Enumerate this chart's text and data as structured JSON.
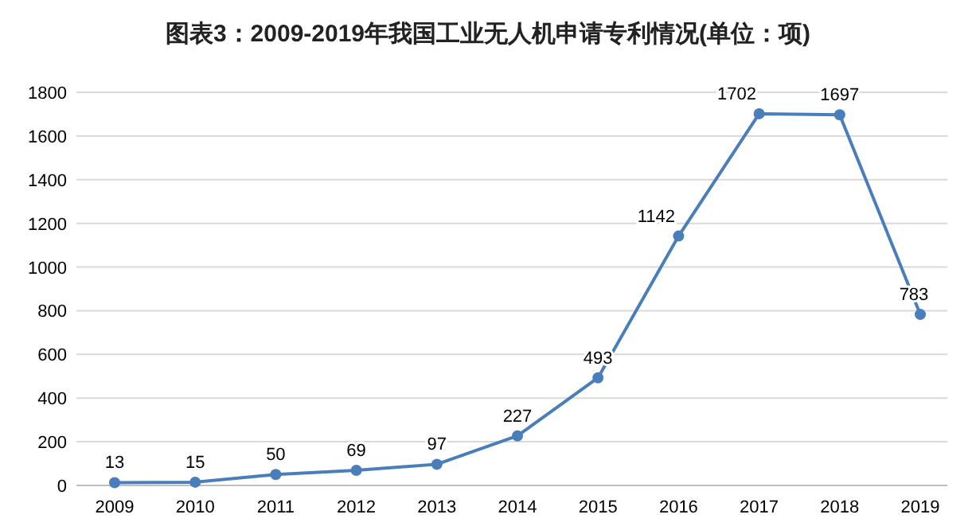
{
  "chart_data": {
    "type": "line",
    "title": "图表3：2009-2019年我国工业无人机申请专利情况(单位：项)",
    "categories": [
      "2009",
      "2010",
      "2011",
      "2012",
      "2013",
      "2014",
      "2015",
      "2016",
      "2017",
      "2018",
      "2019"
    ],
    "series": [
      {
        "color": "#4a7ebb",
        "values": [
          13,
          15,
          50,
          69,
          97,
          227,
          493,
          1142,
          1702,
          1697,
          783
        ]
      }
    ],
    "ylim": [
      0,
      1800
    ],
    "yticks": [
      0,
      200,
      400,
      600,
      800,
      1000,
      1200,
      1400,
      1600,
      1800
    ],
    "grid": "y",
    "marker": "circle",
    "line_style": "solid",
    "data_labels": true
  }
}
